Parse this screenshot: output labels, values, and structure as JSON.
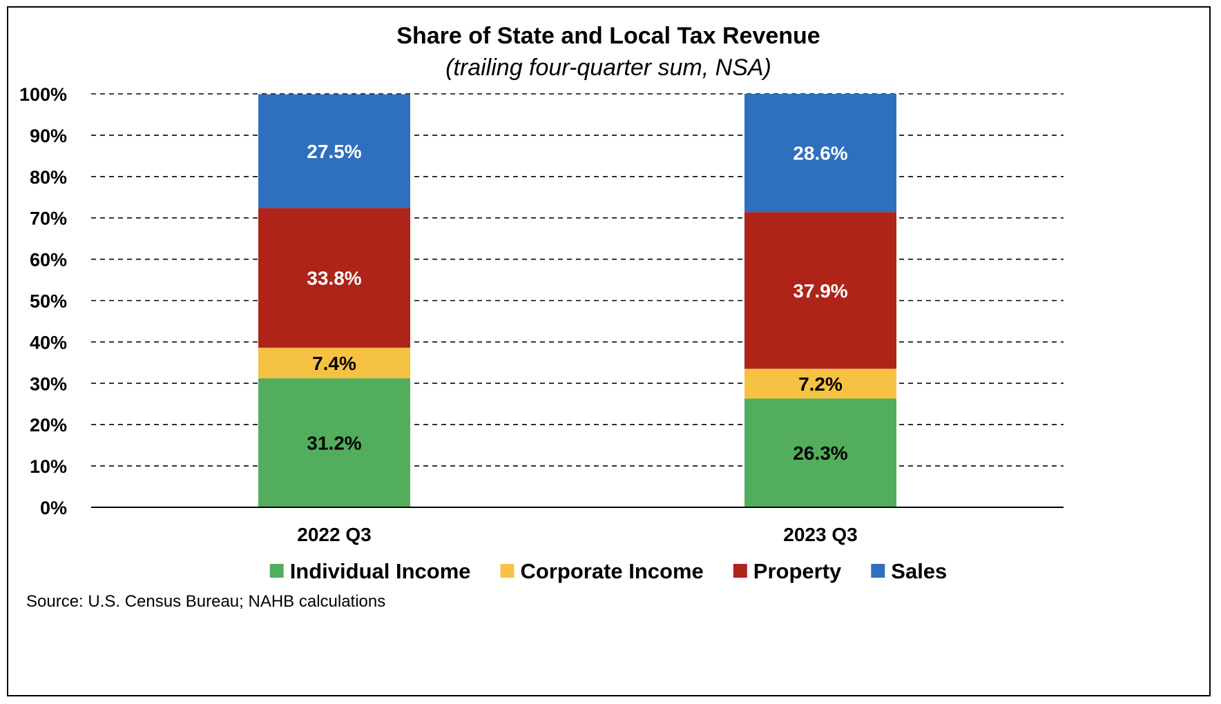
{
  "chart_data": {
    "type": "bar",
    "stacked": true,
    "title": "Share of State and Local Tax Revenue",
    "subtitle": "(trailing four-quarter sum, NSA)",
    "categories": [
      "2022 Q3",
      "2023 Q3"
    ],
    "series": [
      {
        "name": "Individual Income",
        "color": "#52ae5c",
        "label_color": "#000000",
        "values": [
          31.2,
          26.3
        ],
        "labels": [
          "31.2%",
          "26.3%"
        ]
      },
      {
        "name": "Corporate Income",
        "color": "#f6c244",
        "label_color": "#000000",
        "values": [
          7.4,
          7.2
        ],
        "labels": [
          "7.4%",
          "7.2%"
        ]
      },
      {
        "name": "Property",
        "color": "#ae2418",
        "label_color": "#ffffff",
        "values": [
          33.8,
          37.9
        ],
        "labels": [
          "33.8%",
          "37.9%"
        ]
      },
      {
        "name": "Sales",
        "color": "#2f6fbf",
        "label_color": "#ffffff",
        "values": [
          27.5,
          28.6
        ],
        "labels": [
          "27.5%",
          "28.6%"
        ]
      }
    ],
    "ylim": [
      0,
      100
    ],
    "yticks": [
      0,
      10,
      20,
      30,
      40,
      50,
      60,
      70,
      80,
      90,
      100
    ],
    "ytick_labels": [
      "0%",
      "10%",
      "20%",
      "30%",
      "40%",
      "50%",
      "60%",
      "70%",
      "80%",
      "90%",
      "100%"
    ],
    "grid": true,
    "grid_style": "dashed",
    "legend_position": "bottom",
    "xlabel": "",
    "ylabel": ""
  },
  "source": "Source: U.S. Census Bureau; NAHB calculations"
}
